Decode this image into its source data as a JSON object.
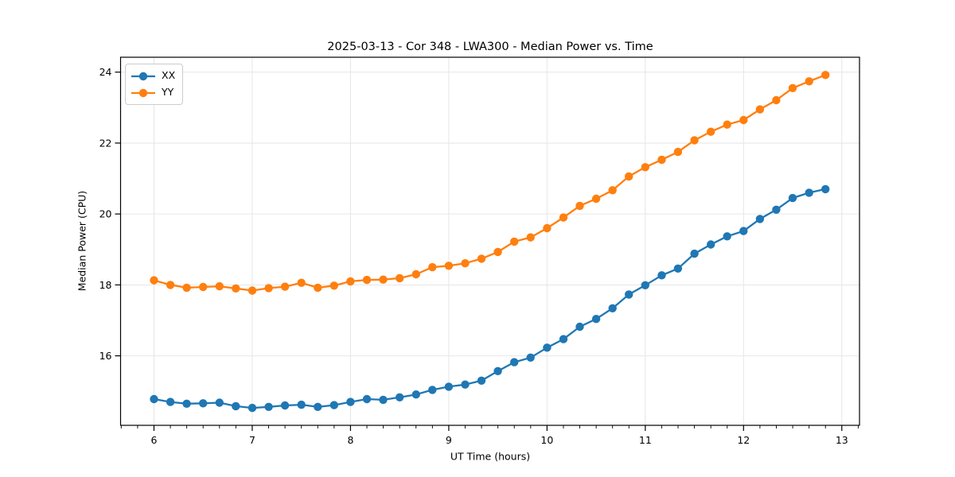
{
  "chart_data": {
    "type": "line",
    "title": "2025-03-13 - Cor 348 - LWA300 - Median Power vs. Time",
    "xlabel": "UT Time (hours)",
    "ylabel": "Median Power (CPU)",
    "x": [
      6,
      6.167,
      6.333,
      6.5,
      6.667,
      6.833,
      7,
      7.167,
      7.333,
      7.5,
      7.667,
      7.833,
      8,
      8.167,
      8.333,
      8.5,
      8.667,
      8.833,
      9,
      9.167,
      9.333,
      9.5,
      9.667,
      9.833,
      10,
      10.167,
      10.333,
      10.5,
      10.667,
      10.833,
      11,
      11.167,
      11.333,
      11.5,
      11.667,
      11.833,
      12,
      12.167,
      12.333,
      12.5,
      12.667,
      12.833
    ],
    "series": [
      {
        "name": "XX",
        "color": "#1f77b4",
        "values": [
          14.78,
          14.7,
          14.65,
          14.66,
          14.68,
          14.58,
          14.53,
          14.56,
          14.6,
          14.62,
          14.56,
          14.61,
          14.7,
          14.78,
          14.76,
          14.83,
          14.91,
          15.04,
          15.13,
          15.19,
          15.3,
          15.57,
          15.82,
          15.95,
          16.23,
          16.47,
          16.82,
          17.04,
          17.34,
          17.73,
          17.99,
          18.27,
          18.46,
          18.88,
          19.14,
          19.37,
          19.52,
          19.86,
          20.12,
          20.45,
          20.6,
          20.7
        ]
      },
      {
        "name": "YY",
        "color": "#ff7f0e",
        "values": [
          18.13,
          18,
          17.92,
          17.94,
          17.96,
          17.9,
          17.84,
          17.91,
          17.95,
          18.06,
          17.92,
          17.98,
          18.1,
          18.14,
          18.15,
          18.19,
          18.3,
          18.5,
          18.54,
          18.61,
          18.74,
          18.93,
          19.22,
          19.34,
          19.6,
          19.9,
          20.23,
          20.43,
          20.67,
          21.06,
          21.32,
          21.53,
          21.75,
          22.08,
          22.32,
          22.52,
          22.65,
          22.95,
          23.21,
          23.55,
          23.74,
          23.92
        ]
      }
    ],
    "xlim": [
      5.66,
      13.18
    ],
    "ylim": [
      14.04,
      24.42
    ],
    "x_ticks": [
      6,
      7,
      8,
      9,
      10,
      11,
      12,
      13
    ],
    "y_ticks": [
      16,
      18,
      20,
      22,
      24
    ],
    "x_minor_step": 0.16667,
    "grid": true,
    "legend_position": "upper left",
    "marker": "o",
    "grid_color": "#e6e6e6",
    "spine_color": "#000000"
  }
}
